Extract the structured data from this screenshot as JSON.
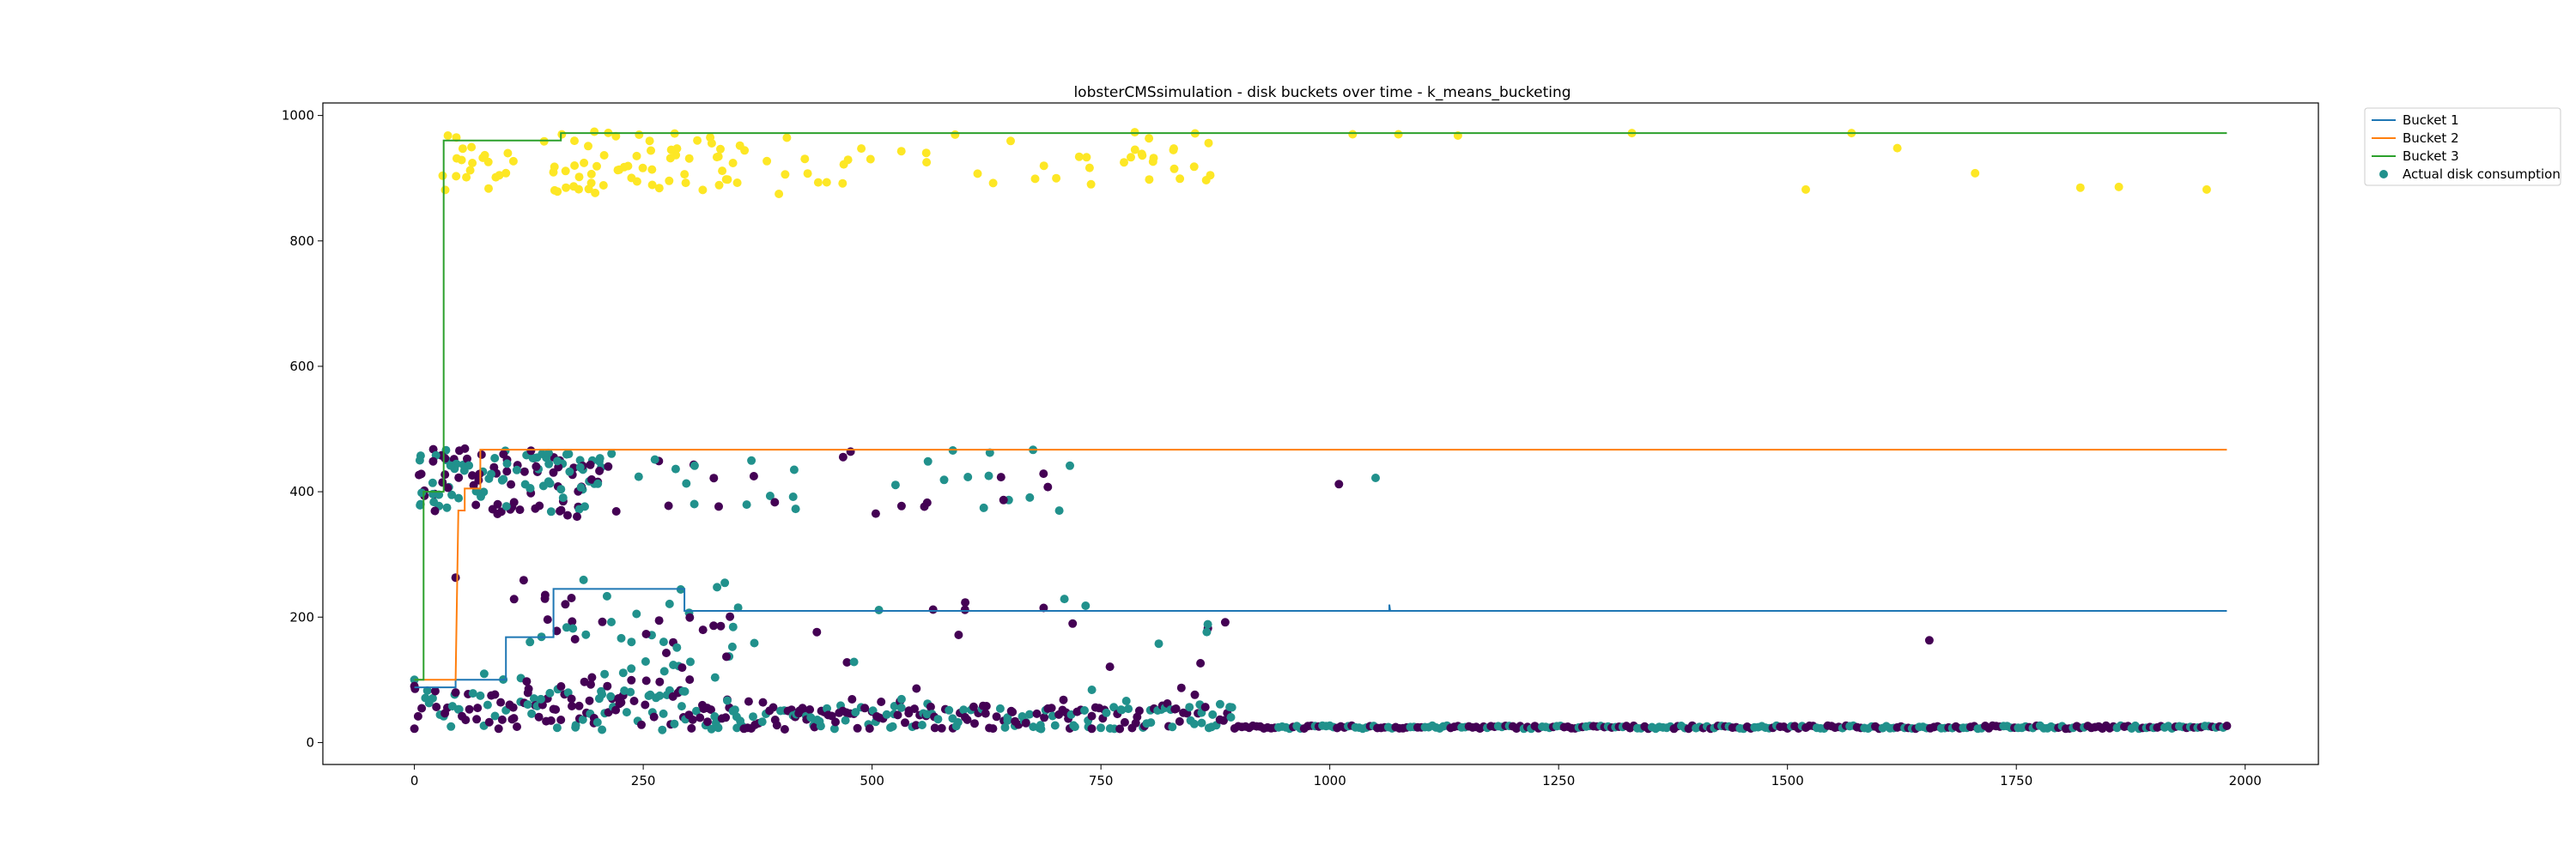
{
  "chart_data": {
    "type": "line",
    "title": "lobsterCMSsimulation - disk buckets over time - k_means_bucketing",
    "xlabel": "",
    "ylabel": "",
    "xlim": [
      -100,
      2080
    ],
    "ylim": [
      -35,
      1020
    ],
    "x_ticks": [
      0,
      250,
      500,
      750,
      1000,
      1250,
      1500,
      1750,
      2000
    ],
    "y_ticks": [
      0,
      200,
      400,
      600,
      800,
      1000
    ],
    "grid": false,
    "legend_position": "outside-top-right",
    "series": [
      {
        "name": "Bucket 1",
        "color": "#1f77b4",
        "points": [
          [
            0,
            88
          ],
          [
            45,
            88
          ],
          [
            45,
            100
          ],
          [
            100,
            100
          ],
          [
            100,
            168
          ],
          [
            152,
            168
          ],
          [
            152,
            245
          ],
          [
            295,
            245
          ],
          [
            295,
            210
          ],
          [
            1065,
            210
          ],
          [
            1065,
            210
          ],
          [
            1065,
            220
          ],
          [
            1066,
            210
          ],
          [
            1980,
            210
          ]
        ]
      },
      {
        "name": "Bucket 2",
        "color": "#ff7f0e",
        "points": [
          [
            0,
            100
          ],
          [
            45,
            100
          ],
          [
            48,
            370
          ],
          [
            55,
            370
          ],
          [
            55,
            405
          ],
          [
            72,
            405
          ],
          [
            72,
            467
          ],
          [
            1980,
            467
          ]
        ]
      },
      {
        "name": "Bucket 3",
        "color": "#2ca02c",
        "points": [
          [
            0,
            100
          ],
          [
            10,
            100
          ],
          [
            10,
            400
          ],
          [
            32,
            400
          ],
          [
            32,
            960
          ],
          [
            160,
            960
          ],
          [
            160,
            972
          ],
          [
            1980,
            972
          ]
        ]
      }
    ],
    "scatter_series": {
      "name": "Actual disk consumption",
      "legend_marker_color": "#21918c",
      "colors": {
        "purple": "#440154",
        "teal": "#21918c",
        "yellow": "#fde725"
      }
    }
  }
}
